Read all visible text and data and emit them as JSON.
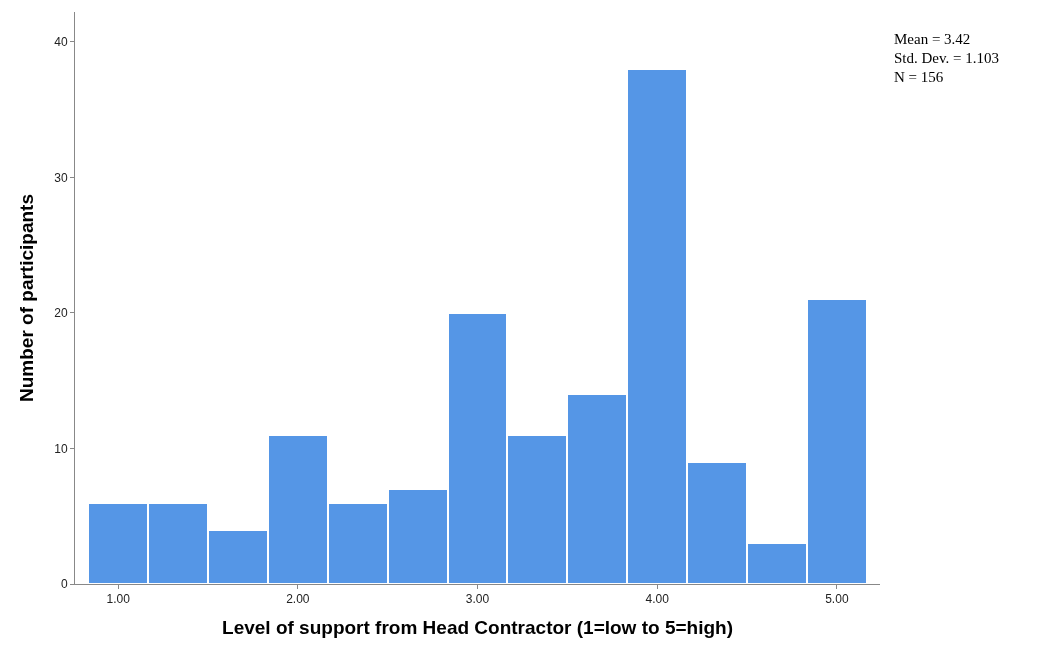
{
  "chart_data": {
    "type": "histogram",
    "xlabel": "Level of support from Head Contractor (1=low to 5=high)",
    "ylabel": "Number of participants",
    "bins": [
      0.8333,
      1.1667,
      1.5,
      1.8333,
      2.1667,
      2.5,
      2.8333,
      3.1667,
      3.5,
      3.8333,
      4.1667,
      4.5,
      4.8333,
      5.1667
    ],
    "values": [
      6,
      6,
      4,
      11,
      6,
      7,
      20,
      11,
      14,
      38,
      9,
      3,
      21
    ],
    "color": "#5596e6",
    "xlim": [
      0.76,
      5.24
    ],
    "ylim": [
      0,
      42.2
    ],
    "xticks": [
      {
        "value": 1,
        "label": "1.00"
      },
      {
        "value": 2,
        "label": "2.00"
      },
      {
        "value": 3,
        "label": "3.00"
      },
      {
        "value": 4,
        "label": "4.00"
      },
      {
        "value": 5,
        "label": "5.00"
      }
    ],
    "yticks": [
      0,
      10,
      20,
      30,
      40
    ],
    "annotations": [
      "Mean = 3.42",
      "Std. Dev. = 1.103",
      "N = 156"
    ]
  }
}
